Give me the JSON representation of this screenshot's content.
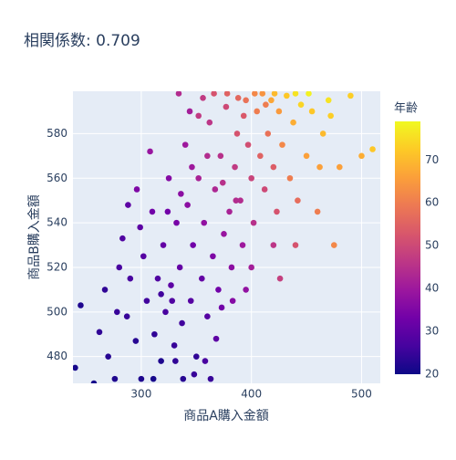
{
  "chart_data": {
    "type": "scatter",
    "title": "相関係数: 0.709",
    "x_label": "商品A購入金額",
    "y_label": "商品B購入金額",
    "colorbar_title": "年齢",
    "x": [
      245,
      240,
      262,
      270,
      278,
      283,
      290,
      295,
      300,
      302,
      305,
      310,
      312,
      315,
      318,
      320,
      322,
      325,
      327,
      330,
      332,
      335,
      337,
      340,
      342,
      345,
      347,
      350,
      352,
      355,
      357,
      360,
      362,
      365,
      367,
      370,
      372,
      375,
      377,
      380,
      382,
      385,
      387,
      390,
      392,
      395,
      397,
      400,
      402,
      405,
      408,
      410,
      412,
      415,
      418,
      420,
      423,
      425,
      428,
      432,
      435,
      438,
      442,
      445,
      450,
      455,
      460,
      465,
      470,
      475,
      480,
      490,
      500,
      510,
      338,
      348,
      328,
      318,
      358,
      368,
      373,
      296,
      308,
      280,
      288,
      334,
      344,
      356,
      366,
      378,
      388,
      393,
      403,
      413,
      421,
      440,
      452,
      462,
      472,
      383,
      363,
      331,
      311,
      276,
      395,
      400,
      420,
      426,
      440,
      352,
      360,
      346,
      336,
      324,
      299,
      287,
      267,
      257,
      386,
      374
    ],
    "y": [
      503,
      475,
      491,
      480,
      500,
      533,
      515,
      487,
      470,
      525,
      505,
      545,
      490,
      515,
      478,
      530,
      500,
      560,
      512,
      485,
      540,
      520,
      495,
      575,
      548,
      505,
      530,
      480,
      560,
      515,
      540,
      498,
      585,
      525,
      555,
      510,
      570,
      535,
      592,
      545,
      520,
      565,
      580,
      550,
      530,
      595,
      575,
      560,
      540,
      590,
      570,
      598,
      555,
      580,
      595,
      565,
      545,
      590,
      575,
      597,
      560,
      585,
      550,
      593,
      570,
      590,
      545,
      580,
      595,
      530,
      565,
      597,
      570,
      573,
      470,
      472,
      505,
      508,
      478,
      488,
      502,
      555,
      572,
      520,
      548,
      598,
      590,
      596,
      598,
      598,
      596,
      588,
      598,
      593,
      598,
      598,
      598,
      565,
      588,
      505,
      470,
      478,
      470,
      470,
      510,
      520,
      530,
      515,
      530,
      588,
      570,
      565,
      553,
      545,
      538,
      498,
      510,
      468,
      550,
      558
    ],
    "ages": [
      22,
      21,
      24,
      23,
      25,
      28,
      27,
      23,
      22,
      29,
      26,
      33,
      24,
      28,
      22,
      31,
      27,
      36,
      30,
      25,
      34,
      31,
      26,
      40,
      37,
      29,
      33,
      24,
      42,
      31,
      38,
      29,
      46,
      35,
      43,
      33,
      45,
      39,
      50,
      42,
      37,
      47,
      52,
      44,
      40,
      58,
      51,
      49,
      45,
      60,
      55,
      64,
      50,
      58,
      67,
      54,
      52,
      65,
      62,
      72,
      60,
      68,
      57,
      74,
      66,
      72,
      60,
      70,
      76,
      62,
      66,
      73,
      68,
      72,
      23,
      25,
      28,
      26,
      27,
      30,
      33,
      35,
      39,
      27,
      30,
      44,
      41,
      47,
      52,
      55,
      56,
      53,
      62,
      60,
      70,
      76,
      78,
      66,
      73,
      36,
      25,
      24,
      21,
      22,
      38,
      41,
      46,
      48,
      52,
      47,
      44,
      40,
      37,
      33,
      30,
      25,
      24,
      21,
      44,
      45
    ],
    "colorscale": [
      "#0d0887",
      "#46039f",
      "#7201a8",
      "#9c179e",
      "#bd3786",
      "#d8576b",
      "#ed7953",
      "#fb9f3a",
      "#fdca26",
      "#f0f921"
    ],
    "cmin": 20,
    "cmax": 79,
    "colorbar_ticks": [
      20,
      30,
      40,
      50,
      60,
      70
    ],
    "xlim": [
      238,
      517
    ],
    "ylim": [
      468,
      599
    ],
    "xticks": [
      300,
      400,
      500
    ],
    "yticks": [
      480,
      500,
      520,
      540,
      560,
      580
    ],
    "grid": true
  }
}
